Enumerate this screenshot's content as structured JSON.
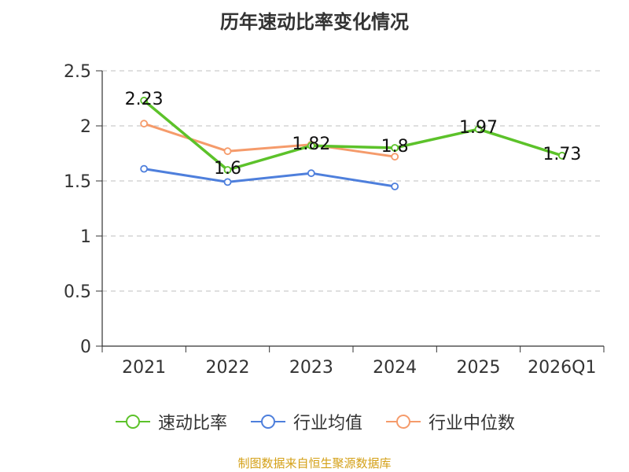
{
  "chart_data": {
    "type": "line",
    "title": "历年速动比率变化情况",
    "categories": [
      "2021",
      "2022",
      "2023",
      "2024",
      "2025",
      "2026Q1"
    ],
    "ylim": [
      0,
      2.5
    ],
    "yticks": [
      0,
      0.5,
      1,
      1.5,
      2,
      2.5
    ],
    "ytick_labels": [
      "0",
      "0.5",
      "1",
      "1.5",
      "2",
      "2.5"
    ],
    "grid": true,
    "legend_position": "bottom",
    "series": [
      {
        "name": "速动比率",
        "color": "#5cc22a",
        "values": [
          2.23,
          1.6,
          1.82,
          1.8,
          1.97,
          1.73
        ],
        "labels": [
          "2.23",
          "1.6",
          "1.82",
          "1.8",
          "1.97",
          "1.73"
        ]
      },
      {
        "name": "行业均值",
        "color": "#4e7fdc",
        "values": [
          1.61,
          1.49,
          1.57,
          1.45,
          null,
          null
        ]
      },
      {
        "name": "行业中位数",
        "color": "#f59b6b",
        "values": [
          2.02,
          1.77,
          1.83,
          1.72,
          null,
          null
        ]
      }
    ]
  },
  "source": "制图数据来自恒生聚源数据库"
}
